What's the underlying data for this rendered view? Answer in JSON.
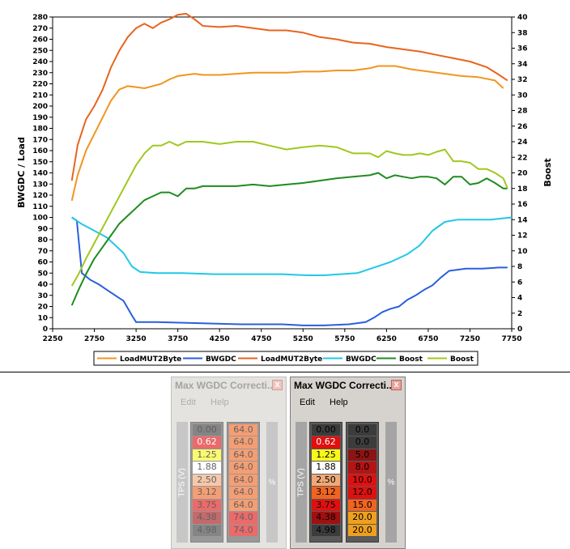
{
  "chart_data": {
    "type": "line",
    "xlabel": "",
    "ylabel": "BWGDC / Load",
    "y2label": "Boost",
    "x_ticks": [
      2250,
      2750,
      3250,
      3750,
      4250,
      4750,
      5250,
      5750,
      6250,
      6750,
      7250,
      7750
    ],
    "y_ticks": [
      0,
      10,
      20,
      30,
      40,
      50,
      60,
      70,
      80,
      90,
      100,
      110,
      120,
      130,
      140,
      150,
      160,
      170,
      180,
      190,
      200,
      210,
      220,
      230,
      240,
      250,
      260,
      270,
      280
    ],
    "y2_ticks": [
      0,
      2,
      4,
      6,
      8,
      10,
      12,
      14,
      16,
      18,
      20,
      22,
      24,
      26,
      28,
      30,
      32,
      34,
      36,
      38,
      40
    ],
    "xlim": [
      2250,
      7750
    ],
    "ylim": [
      0,
      280
    ],
    "y2lim": [
      0,
      40
    ],
    "grid": false,
    "legend_position": "bottom",
    "series": [
      {
        "name": "LoadMUT2Byte",
        "color": "#f0961e",
        "axis": "left",
        "x": [
          2480,
          2550,
          2650,
          2750,
          2850,
          2950,
          3050,
          3150,
          3250,
          3350,
          3450,
          3550,
          3650,
          3750,
          3850,
          3950,
          4050,
          4250,
          4450,
          4650,
          4850,
          5050,
          5250,
          5450,
          5650,
          5850,
          6050,
          6150,
          6350,
          6550,
          6750,
          6950,
          7150,
          7350,
          7550,
          7650
        ],
        "y": [
          115,
          138,
          160,
          175,
          190,
          205,
          215,
          218,
          217,
          216,
          218,
          220,
          224,
          227,
          228,
          229,
          228,
          228,
          229,
          230,
          230,
          230,
          231,
          231,
          232,
          232,
          234,
          236,
          236,
          233,
          231,
          229,
          227,
          226,
          223,
          216
        ]
      },
      {
        "name": "BWGDC",
        "color": "#2a5fdc",
        "axis": "left",
        "x": [
          2480,
          2540,
          2600,
          2700,
          2800,
          2900,
          3000,
          3100,
          3200,
          3250,
          3500,
          4000,
          4500,
          5000,
          5250,
          5500,
          5800,
          6000,
          6100,
          6200,
          6300,
          6400,
          6500,
          6600,
          6700,
          6800,
          6900,
          7000,
          7200,
          7400,
          7600,
          7700
        ],
        "y": [
          100,
          97,
          50,
          44,
          40,
          35,
          30,
          25,
          12,
          6,
          6,
          5,
          4,
          4,
          3,
          3,
          4,
          6,
          10,
          15,
          18,
          20,
          26,
          30,
          35,
          39,
          46,
          52,
          54,
          54,
          55,
          55
        ]
      },
      {
        "name": "LoadMUT2Byte",
        "color": "#e8641e",
        "axis": "left",
        "x": [
          2480,
          2550,
          2650,
          2750,
          2850,
          2950,
          3050,
          3150,
          3250,
          3350,
          3450,
          3550,
          3650,
          3750,
          3850,
          3950,
          4050,
          4250,
          4450,
          4650,
          4850,
          5050,
          5250,
          5450,
          5650,
          5850,
          6050,
          6250,
          6450,
          6650,
          6850,
          7050,
          7250,
          7450,
          7600,
          7700
        ],
        "y": [
          133,
          165,
          188,
          200,
          215,
          235,
          250,
          262,
          270,
          274,
          270,
          275,
          278,
          282,
          283,
          278,
          272,
          271,
          272,
          270,
          268,
          268,
          266,
          262,
          260,
          257,
          256,
          253,
          251,
          249,
          246,
          243,
          240,
          235,
          228,
          223
        ]
      },
      {
        "name": "BWGDC",
        "color": "#20c8e6",
        "axis": "left",
        "x": [
          2480,
          2600,
          2700,
          2800,
          2900,
          3000,
          3100,
          3200,
          3300,
          3500,
          3800,
          4200,
          4600,
          5000,
          5300,
          5500,
          5700,
          5900,
          6100,
          6300,
          6500,
          6650,
          6800,
          6950,
          7100,
          7300,
          7500,
          7750
        ],
        "y": [
          100,
          94,
          90,
          86,
          82,
          75,
          68,
          56,
          51,
          50,
          50,
          49,
          49,
          49,
          48,
          48,
          49,
          50,
          55,
          60,
          67,
          75,
          88,
          96,
          98,
          98,
          98,
          100
        ]
      },
      {
        "name": "Boost",
        "color": "#1e8c1e",
        "axis": "right",
        "x": [
          2480,
          2560,
          2650,
          2750,
          2850,
          2950,
          3050,
          3150,
          3250,
          3350,
          3450,
          3550,
          3650,
          3750,
          3850,
          3950,
          4050,
          4250,
          4450,
          4650,
          4850,
          5050,
          5250,
          5450,
          5650,
          5850,
          6050,
          6150,
          6250,
          6350,
          6450,
          6550,
          6650,
          6750,
          6850,
          6950,
          7050,
          7150,
          7250,
          7350,
          7450,
          7550,
          7650,
          7700
        ],
        "y": [
          3,
          5,
          7,
          9,
          10.5,
          12,
          13.5,
          14.5,
          15.5,
          16.5,
          17,
          17.5,
          17.5,
          17,
          18,
          18,
          18.3,
          18.3,
          18.3,
          18.5,
          18.3,
          18.5,
          18.7,
          19,
          19.3,
          19.5,
          19.7,
          20,
          19.3,
          19.7,
          19.5,
          19.3,
          19.5,
          19.5,
          19.3,
          18.5,
          19.5,
          19.5,
          18.5,
          18.7,
          19.3,
          18.7,
          18,
          18
        ]
      },
      {
        "name": "Boost",
        "color": "#a0c81e",
        "axis": "right",
        "x": [
          2480,
          2560,
          2650,
          2750,
          2850,
          2950,
          3050,
          3150,
          3250,
          3350,
          3450,
          3550,
          3650,
          3750,
          3850,
          3950,
          4050,
          4250,
          4450,
          4650,
          4850,
          5050,
          5250,
          5450,
          5650,
          5850,
          6050,
          6150,
          6250,
          6350,
          6450,
          6550,
          6650,
          6750,
          6850,
          6950,
          7050,
          7150,
          7250,
          7350,
          7450,
          7550,
          7650,
          7700
        ],
        "y": [
          5.5,
          7,
          9,
          11,
          13,
          15,
          17,
          19,
          21,
          22.5,
          23.5,
          23.5,
          24,
          23.5,
          24,
          24,
          24,
          23.7,
          24,
          24,
          23.5,
          23,
          23.3,
          23.5,
          23.3,
          22.5,
          22.5,
          22,
          22.8,
          22.5,
          22.3,
          22.3,
          22.5,
          22.3,
          22.7,
          23,
          21.5,
          21.5,
          21.3,
          20.5,
          20.5,
          20,
          19.3,
          18
        ]
      }
    ],
    "legend_entries": [
      "LoadMUT2Byte",
      "BWGDC",
      "LoadMUT2Byte",
      "BWGDC",
      "Boost",
      "Boost"
    ]
  },
  "windows": [
    {
      "title": "Max WGDC Correcti...",
      "close": "x",
      "menu": [
        "Edit",
        "Help"
      ],
      "ylabel": "TPS (V)",
      "unit": "%",
      "state": "inactive",
      "tps": [
        {
          "v": "0.00",
          "bg": "#3c3c3c",
          "fg": "#000000"
        },
        {
          "v": "0.62",
          "bg": "#e01010",
          "fg": "#ffffff"
        },
        {
          "v": "1.25",
          "bg": "#f8f81a",
          "fg": "#000000"
        },
        {
          "v": "1.88",
          "bg": "#ffffff",
          "fg": "#000000"
        },
        {
          "v": "2.50",
          "bg": "#f0a878",
          "fg": "#000000"
        },
        {
          "v": "3.12",
          "bg": "#f06420",
          "fg": "#000000"
        },
        {
          "v": "3.75",
          "bg": "#e01010",
          "fg": "#000000"
        },
        {
          "v": "4.38",
          "bg": "#a01010",
          "fg": "#000000"
        },
        {
          "v": "4.98",
          "bg": "#3c3c3c",
          "fg": "#000000"
        }
      ],
      "values": [
        {
          "v": "64.0",
          "bg": "#f06420"
        },
        {
          "v": "64.0",
          "bg": "#f06420"
        },
        {
          "v": "64.0",
          "bg": "#f06420"
        },
        {
          "v": "64.0",
          "bg": "#f06420"
        },
        {
          "v": "64.0",
          "bg": "#f06420"
        },
        {
          "v": "64.0",
          "bg": "#f06420"
        },
        {
          "v": "64.0",
          "bg": "#f06420"
        },
        {
          "v": "74.0",
          "bg": "#e01010"
        },
        {
          "v": "74.0",
          "bg": "#e01010"
        }
      ]
    },
    {
      "title": "Max WGDC Correcti...",
      "close": "x",
      "menu": [
        "Edit",
        "Help"
      ],
      "ylabel": "TPS (V)",
      "unit": "%",
      "state": "active",
      "tps": [
        {
          "v": "0.00",
          "bg": "#3c3c3c",
          "fg": "#000000"
        },
        {
          "v": "0.62",
          "bg": "#e01010",
          "fg": "#ffffff"
        },
        {
          "v": "1.25",
          "bg": "#f8f81a",
          "fg": "#000000"
        },
        {
          "v": "1.88",
          "bg": "#ffffff",
          "fg": "#000000"
        },
        {
          "v": "2.50",
          "bg": "#f0a878",
          "fg": "#000000"
        },
        {
          "v": "3.12",
          "bg": "#f06420",
          "fg": "#000000"
        },
        {
          "v": "3.75",
          "bg": "#e01010",
          "fg": "#000000"
        },
        {
          "v": "4.38",
          "bg": "#a01010",
          "fg": "#000000"
        },
        {
          "v": "4.98",
          "bg": "#3c3c3c",
          "fg": "#000000"
        }
      ],
      "values": [
        {
          "v": "0.0",
          "bg": "#3c3c3c"
        },
        {
          "v": "0.0",
          "bg": "#3c3c3c"
        },
        {
          "v": "5.0",
          "bg": "#8c1414"
        },
        {
          "v": "8.0",
          "bg": "#b41414"
        },
        {
          "v": "10.0",
          "bg": "#e01010"
        },
        {
          "v": "12.0",
          "bg": "#e01010"
        },
        {
          "v": "15.0",
          "bg": "#f06420"
        },
        {
          "v": "20.0",
          "bg": "#f0a01e"
        },
        {
          "v": "20.0",
          "bg": "#f0a01e"
        }
      ]
    }
  ]
}
